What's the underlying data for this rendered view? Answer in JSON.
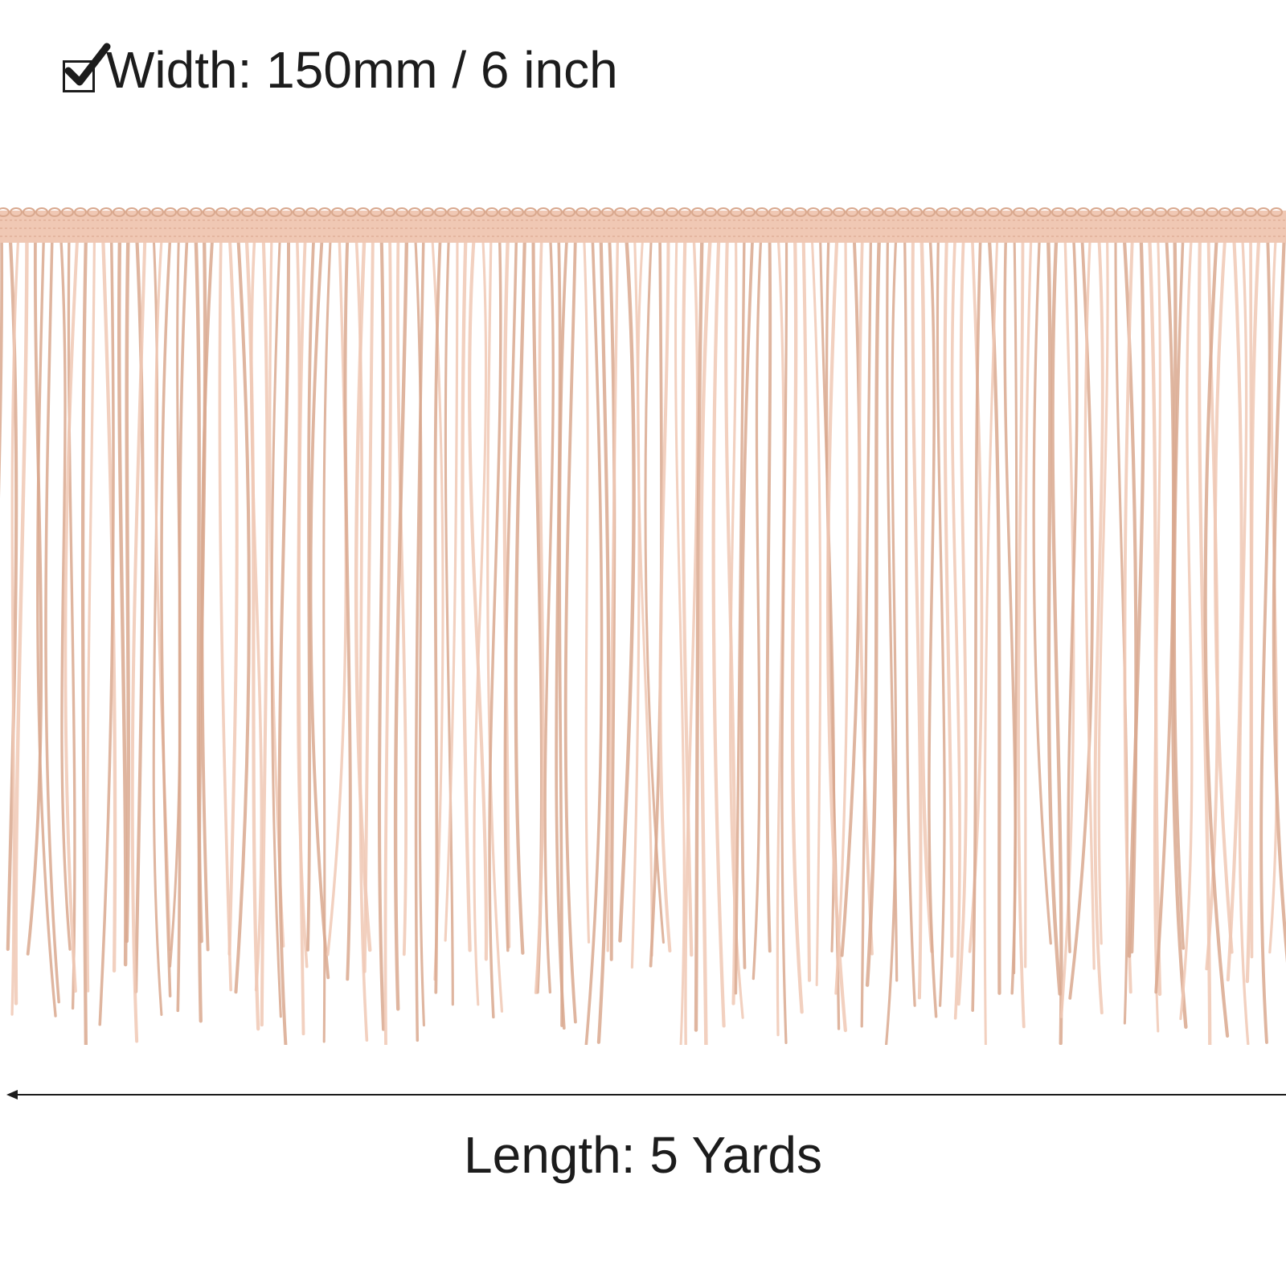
{
  "width_spec": {
    "icon": "checkbox-checked-icon",
    "text": "Width: 150mm / 6 inch"
  },
  "length_spec": {
    "icon": "left-arrow-icon",
    "text": "Length: 5 Yards"
  },
  "product": {
    "name": "fringe-trim",
    "color": "#f0c8b4",
    "color_dark": "#d9a88e"
  }
}
